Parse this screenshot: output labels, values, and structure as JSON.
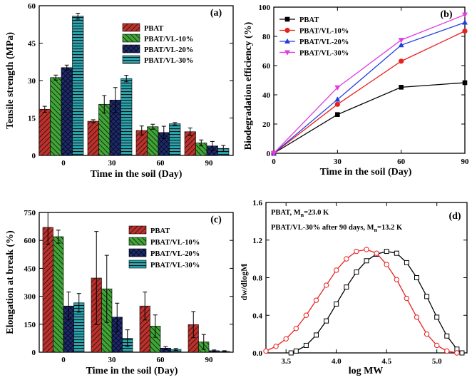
{
  "chart_data": [
    {
      "panel_label": "(a)",
      "type": "bar",
      "categories": [
        "0",
        "30",
        "60",
        "90"
      ],
      "xlabel": "Time in the soil (Day)",
      "ylabel": "Tensile strength (MPa)",
      "ylim": [
        0,
        60
      ],
      "yticks": [
        0,
        15,
        30,
        45,
        60
      ],
      "error_bars": true,
      "legend_position": "top-center",
      "series": [
        {
          "name": "PBAT",
          "color": "#c0302b",
          "pattern": "diagonal",
          "values": [
            18.5,
            13.7,
            10.0,
            9.5
          ],
          "errors": [
            1.2,
            0.6,
            1.8,
            1.5
          ]
        },
        {
          "name": "PBAT/VL-10%",
          "color": "#3fa535",
          "pattern": "back-diagonal",
          "values": [
            31.2,
            20.5,
            11.5,
            5.0
          ],
          "errors": [
            1.0,
            3.5,
            1.0,
            1.2
          ]
        },
        {
          "name": "PBAT/VL-20%",
          "color": "#1e2a6e",
          "pattern": "cross",
          "values": [
            35.2,
            22.2,
            9.2,
            3.8
          ],
          "errors": [
            1.0,
            5.0,
            2.5,
            1.8
          ]
        },
        {
          "name": "PBAT/VL-30%",
          "color": "#2aa6b0",
          "pattern": "horizontal",
          "values": [
            55.8,
            30.8,
            12.7,
            2.8
          ],
          "errors": [
            1.2,
            1.3,
            0.5,
            1.2
          ]
        }
      ]
    },
    {
      "panel_label": "(b)",
      "type": "line",
      "x": [
        0,
        30,
        60,
        90
      ],
      "xlabel": "Time in the soil (Day)",
      "ylabel": "Biodegradation efficiency (%)",
      "xlim": [
        0,
        90
      ],
      "ylim": [
        0,
        100
      ],
      "xticks": [
        0,
        30,
        60,
        90
      ],
      "yticks": [
        0,
        20,
        40,
        60,
        80,
        100
      ],
      "legend_position": "top-left",
      "series": [
        {
          "name": "PBAT",
          "color": "#000000",
          "marker": "square",
          "values": [
            0,
            26.5,
            45.2,
            48.3
          ]
        },
        {
          "name": "PBAT/VL-10%",
          "color": "#e8211f",
          "marker": "circle",
          "values": [
            0,
            33.5,
            63.0,
            83.6
          ]
        },
        {
          "name": "PBAT/VL-20%",
          "color": "#1f3fe0",
          "marker": "triangle-up",
          "values": [
            0,
            36.8,
            74.0,
            89.5
          ]
        },
        {
          "name": "PBAT/VL-30%",
          "color": "#e23be0",
          "marker": "triangle-down",
          "values": [
            0,
            45.0,
            77.5,
            94.8
          ]
        }
      ]
    },
    {
      "panel_label": "(c)",
      "type": "bar",
      "categories": [
        "0",
        "30",
        "60",
        "90"
      ],
      "xlabel": "Time in the soil (Day)",
      "ylabel": "Elongation at break (%)",
      "ylim": [
        0,
        750
      ],
      "yticks": [
        0,
        150,
        300,
        450,
        600,
        750
      ],
      "error_bars": true,
      "legend_position": "top-right",
      "series": [
        {
          "name": "PBAT",
          "color": "#c0302b",
          "pattern": "diagonal",
          "values": [
            670,
            398,
            248,
            148
          ],
          "errors": [
            90,
            250,
            75,
            70
          ]
        },
        {
          "name": "PBAT/VL-10%",
          "color": "#3fa535",
          "pattern": "back-diagonal",
          "values": [
            620,
            340,
            140,
            55
          ],
          "errors": [
            35,
            180,
            60,
            40
          ]
        },
        {
          "name": "PBAT/VL-20%",
          "color": "#1e2a6e",
          "pattern": "cross",
          "values": [
            248,
            188,
            22,
            8
          ],
          "errors": [
            75,
            75,
            8,
            4
          ]
        },
        {
          "name": "PBAT/VL-30%",
          "color": "#2aa6b0",
          "pattern": "horizontal",
          "values": [
            265,
            75,
            15,
            5
          ],
          "errors": [
            50,
            45,
            5,
            3
          ]
        }
      ]
    },
    {
      "panel_label": "(d)",
      "type": "line",
      "xlabel": "log MW",
      "ylabel": "dw/dlogM",
      "xlim": [
        3.3,
        5.3
      ],
      "ylim": [
        0,
        1.6
      ],
      "xticks": [
        3.5,
        4.0,
        4.5,
        5.0
      ],
      "yticks": [
        0.0,
        0.4,
        0.8,
        1.2,
        1.6
      ],
      "annotation_lines": [
        "PBAT, M",
        "=23.0 K",
        "PBAT/VL-30% after 90 days, M",
        "=13.2 K"
      ],
      "annotation_subscript": "n",
      "series": [
        {
          "color": "#000000",
          "marker": "open-square",
          "x": [
            3.55,
            3.6,
            3.7,
            3.8,
            3.9,
            4.0,
            4.1,
            4.2,
            4.3,
            4.4,
            4.5,
            4.6,
            4.7,
            4.8,
            4.9,
            5.0,
            5.1,
            5.2,
            5.25
          ],
          "values": [
            0.0,
            0.02,
            0.08,
            0.19,
            0.34,
            0.52,
            0.7,
            0.86,
            0.98,
            1.05,
            1.08,
            1.06,
            0.96,
            0.8,
            0.6,
            0.38,
            0.18,
            0.04,
            0.0
          ]
        },
        {
          "color": "#e8211f",
          "marker": "open-circle",
          "x": [
            3.3,
            3.4,
            3.5,
            3.6,
            3.7,
            3.8,
            3.9,
            4.0,
            4.1,
            4.2,
            4.3,
            4.4,
            4.5,
            4.6,
            4.7,
            4.8,
            4.9,
            5.0,
            5.1,
            5.2
          ],
          "values": [
            0.02,
            0.07,
            0.15,
            0.26,
            0.4,
            0.56,
            0.72,
            0.88,
            1.0,
            1.08,
            1.1,
            1.06,
            0.94,
            0.78,
            0.58,
            0.38,
            0.2,
            0.08,
            0.02,
            0.0
          ]
        }
      ]
    }
  ]
}
